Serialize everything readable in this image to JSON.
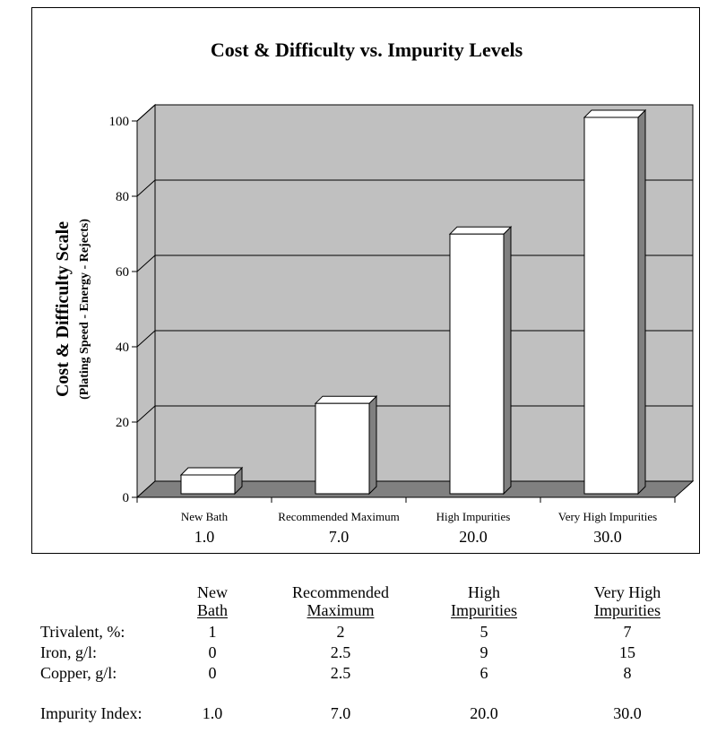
{
  "chart_data": {
    "type": "bar",
    "style": "3d",
    "title": "Cost & Difficulty vs. Impurity Levels",
    "ylabel": "Cost & Difficulty Scale",
    "ylabel_sub": "(Plating Speed - Energy - Rejects)",
    "ylim": [
      0,
      100
    ],
    "yticks": [
      "0",
      "20",
      "40",
      "60",
      "80",
      "100"
    ],
    "ytick_values": [
      0,
      20,
      40,
      60,
      80,
      100
    ],
    "categories": [
      "New Bath",
      "Recommended Maximum",
      "High Impurities",
      "Very High Impurities"
    ],
    "category_index_labels": [
      "1.0",
      "7.0",
      "20.0",
      "30.0"
    ],
    "values": [
      5,
      24,
      69,
      100
    ],
    "grid": true,
    "legend": "none",
    "colors": {
      "bar_face": "#ffffff",
      "bar_side": "#808080",
      "wall": "#c0c0c0",
      "floor": "#808080",
      "gridline": "#000000"
    }
  },
  "table": {
    "columns": [
      {
        "line1": "New",
        "line2": "Bath"
      },
      {
        "line1": "Recommended",
        "line2": "Maximum"
      },
      {
        "line1": "High",
        "line2": "Impurities"
      },
      {
        "line1": "Very High",
        "line2": "Impurities"
      }
    ],
    "rows": [
      {
        "label": "Trivalent, %:",
        "values": [
          "1",
          "2",
          "5",
          "7"
        ]
      },
      {
        "label": "Iron, g/l:",
        "values": [
          "0",
          "2.5",
          "9",
          "15"
        ]
      },
      {
        "label": "Copper, g/l:",
        "values": [
          "0",
          "2.5",
          "6",
          "8"
        ]
      }
    ],
    "index_row": {
      "label": "Impurity Index:",
      "values": [
        "1.0",
        "7.0",
        "20.0",
        "30.0"
      ]
    }
  }
}
